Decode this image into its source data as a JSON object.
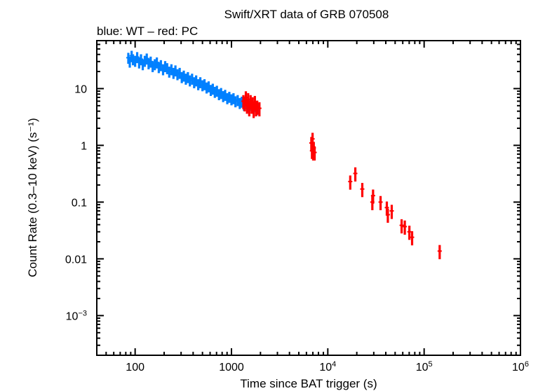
{
  "chart_data": {
    "type": "scatter",
    "title": "Swift/XRT data of GRB 070508",
    "subtitle": "blue: WT – red: PC",
    "xlabel": "Time since BAT trigger (s)",
    "ylabel": "Count Rate (0.3–10 keV) (s⁻¹)",
    "xscale": "log",
    "yscale": "log",
    "xlim": [
      40,
      1000000
    ],
    "ylim": [
      0.0002,
      70
    ],
    "grid": false,
    "x_ticks": [
      {
        "value": 100,
        "label": "100",
        "sup": ""
      },
      {
        "value": 1000,
        "label": "1000",
        "sup": ""
      },
      {
        "value": 10000,
        "label": "10",
        "sup": "4"
      },
      {
        "value": 100000,
        "label": "10",
        "sup": "5"
      },
      {
        "value": 1000000,
        "label": "10",
        "sup": "6"
      }
    ],
    "y_ticks": [
      {
        "value": 10,
        "label": "10",
        "sup": ""
      },
      {
        "value": 1,
        "label": "1",
        "sup": ""
      },
      {
        "value": 0.1,
        "label": "0.1",
        "sup": ""
      },
      {
        "value": 0.01,
        "label": "0.01",
        "sup": ""
      },
      {
        "value": 0.001,
        "label": "10",
        "sup": "−3"
      }
    ],
    "series": [
      {
        "name": "WT",
        "color": "#0080ff",
        "rel_error": 0.22,
        "points": [
          [
            85,
            35
          ],
          [
            88,
            30
          ],
          [
            92,
            38
          ],
          [
            95,
            33
          ],
          [
            100,
            31
          ],
          [
            105,
            36
          ],
          [
            110,
            29
          ],
          [
            115,
            33
          ],
          [
            120,
            27
          ],
          [
            126,
            31
          ],
          [
            132,
            34
          ],
          [
            138,
            28
          ],
          [
            145,
            30
          ],
          [
            152,
            25
          ],
          [
            160,
            27
          ],
          [
            168,
            29
          ],
          [
            176,
            24
          ],
          [
            185,
            26
          ],
          [
            195,
            22
          ],
          [
            205,
            25
          ],
          [
            215,
            23
          ],
          [
            226,
            20
          ],
          [
            238,
            22
          ],
          [
            250,
            19
          ],
          [
            262,
            21
          ],
          [
            275,
            18
          ],
          [
            290,
            19
          ],
          [
            305,
            16
          ],
          [
            320,
            17
          ],
          [
            336,
            15
          ],
          [
            353,
            16
          ],
          [
            370,
            14
          ],
          [
            390,
            15
          ],
          [
            410,
            13
          ],
          [
            430,
            14
          ],
          [
            452,
            12
          ],
          [
            475,
            13
          ],
          [
            500,
            11.5
          ],
          [
            525,
            12
          ],
          [
            552,
            10.5
          ],
          [
            580,
            11
          ],
          [
            610,
            9.5
          ],
          [
            640,
            10
          ],
          [
            672,
            8.8
          ],
          [
            706,
            9.2
          ],
          [
            742,
            8
          ],
          [
            780,
            8.4
          ],
          [
            820,
            7.4
          ],
          [
            860,
            7.8
          ],
          [
            905,
            6.8
          ],
          [
            950,
            7.2
          ],
          [
            1000,
            6.5
          ],
          [
            1050,
            6.8
          ],
          [
            1100,
            6.0
          ],
          [
            1160,
            6.3
          ],
          [
            1220,
            5.6
          ],
          [
            1280,
            5.9
          ],
          [
            1350,
            5.2
          ],
          [
            1420,
            5.5
          ],
          [
            1490,
            4.9
          ],
          [
            1570,
            5.2
          ],
          [
            1650,
            4.6
          ],
          [
            1730,
            4.9
          ],
          [
            1820,
            4.3
          ],
          [
            1920,
            4.5
          ]
        ]
      },
      {
        "name": "PC",
        "color": "#ff0000",
        "rel_error": 0.28,
        "points": [
          [
            1330,
            6
          ],
          [
            1370,
            5.5
          ],
          [
            1410,
            7
          ],
          [
            1450,
            5
          ],
          [
            1490,
            6.5
          ],
          [
            1530,
            4.5
          ],
          [
            1580,
            6
          ],
          [
            1620,
            5
          ],
          [
            1660,
            5.5
          ],
          [
            1700,
            4.2
          ],
          [
            1750,
            5.8
          ],
          [
            1800,
            4.5
          ],
          [
            1850,
            4.8
          ],
          [
            1950,
            4.5
          ],
          [
            6750,
            1.1
          ],
          [
            6850,
            0.8
          ],
          [
            6950,
            1.3
          ],
          [
            7050,
            0.75
          ],
          [
            7150,
            0.9
          ],
          [
            7300,
            0.75
          ],
          [
            17100,
            0.23
          ],
          [
            19300,
            0.32
          ],
          [
            22800,
            0.17
          ],
          [
            29000,
            0.1
          ],
          [
            29500,
            0.13
          ],
          [
            35300,
            0.1
          ],
          [
            41000,
            0.08
          ],
          [
            42000,
            0.06
          ],
          [
            46100,
            0.07
          ],
          [
            58400,
            0.039
          ],
          [
            63000,
            0.037
          ],
          [
            70300,
            0.03
          ],
          [
            75000,
            0.024
          ],
          [
            145000,
            0.0137
          ]
        ]
      }
    ]
  }
}
